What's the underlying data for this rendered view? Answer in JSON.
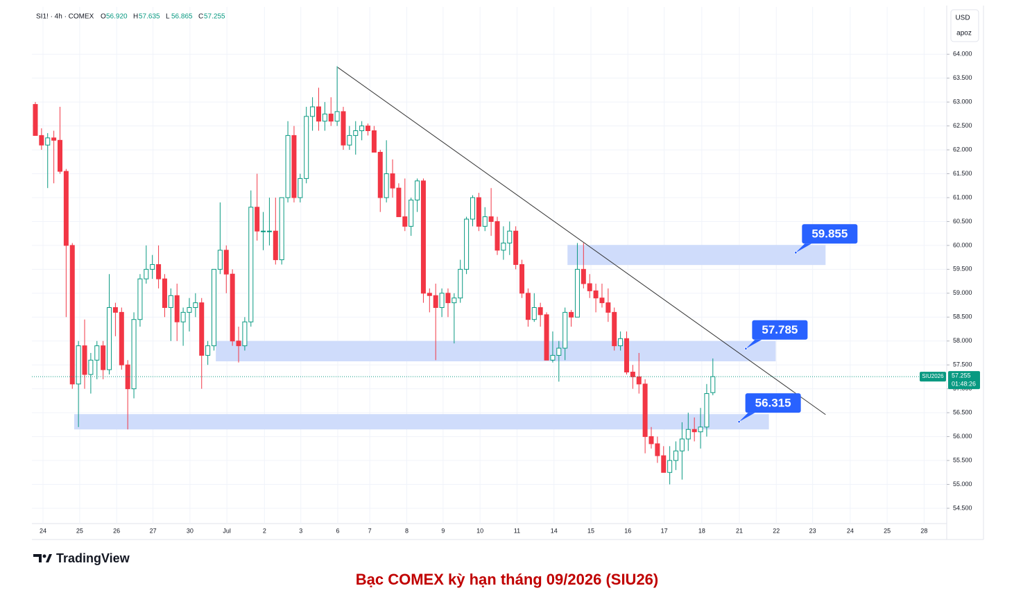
{
  "chart_data": {
    "type": "candlestick",
    "symbol": "SI1! · 4h · COMEX",
    "legend_values": [
      {
        "key": "O",
        "value": 56.92,
        "label": "56.920"
      },
      {
        "key": "H",
        "value": 57.635,
        "label": "57.635"
      },
      {
        "key": "L",
        "value": 56.865,
        "label": "56.865"
      },
      {
        "key": "C",
        "value": 57.255,
        "label": "57.255"
      }
    ],
    "currency": "USD",
    "currency_sub": "apoz",
    "up_color": "#089981",
    "down_color": "#f23645",
    "zone_color": "#cfdcfb",
    "label_color": "#2962ff",
    "trend_color": "#333333",
    "candles": [
      [
        62.95,
        63.0,
        62.3,
        62.3
      ],
      [
        62.3,
        62.45,
        62.0,
        62.1
      ],
      [
        62.1,
        62.35,
        61.2,
        62.25
      ],
      [
        62.25,
        62.4,
        61.3,
        62.2
      ],
      [
        62.2,
        62.9,
        61.5,
        61.55
      ],
      [
        61.55,
        61.6,
        58.5,
        60.0
      ],
      [
        60.0,
        60.05,
        57.0,
        57.1
      ],
      [
        57.1,
        58.0,
        56.2,
        57.9
      ],
      [
        57.9,
        58.45,
        57.0,
        57.3
      ],
      [
        57.3,
        57.75,
        56.9,
        57.6
      ],
      [
        57.6,
        58.0,
        57.2,
        57.9
      ],
      [
        57.9,
        58.0,
        57.2,
        57.4
      ],
      [
        57.4,
        59.4,
        57.3,
        58.7
      ],
      [
        58.7,
        58.8,
        58.1,
        58.6
      ],
      [
        58.6,
        58.7,
        57.4,
        57.5
      ],
      [
        57.5,
        57.6,
        56.15,
        57.0
      ],
      [
        57.0,
        58.6,
        56.8,
        58.45
      ],
      [
        58.45,
        59.4,
        58.3,
        59.3
      ],
      [
        59.3,
        60.0,
        59.2,
        59.5
      ],
      [
        59.5,
        59.8,
        59.3,
        59.6
      ],
      [
        59.6,
        60.0,
        59.1,
        59.3
      ],
      [
        59.3,
        59.4,
        58.5,
        58.7
      ],
      [
        58.7,
        59.1,
        58.0,
        58.95
      ],
      [
        58.95,
        59.2,
        58.0,
        58.4
      ],
      [
        58.4,
        58.7,
        57.9,
        58.6
      ],
      [
        58.6,
        58.9,
        58.2,
        58.7
      ],
      [
        58.7,
        59.0,
        58.5,
        58.8
      ],
      [
        58.8,
        58.9,
        57.0,
        57.7
      ],
      [
        57.7,
        58.0,
        57.5,
        57.9
      ],
      [
        57.9,
        59.5,
        57.8,
        59.5
      ],
      [
        59.5,
        60.9,
        59.4,
        59.9
      ],
      [
        59.9,
        60.0,
        59.0,
        59.4
      ],
      [
        59.4,
        59.5,
        57.9,
        58.0
      ],
      [
        58.0,
        58.3,
        57.55,
        57.9
      ],
      [
        57.9,
        58.5,
        57.8,
        58.4
      ],
      [
        58.4,
        61.15,
        58.3,
        60.8
      ],
      [
        60.8,
        61.5,
        60.1,
        60.3
      ],
      [
        60.3,
        60.7,
        59.9,
        60.3
      ],
      [
        60.3,
        61.0,
        60.0,
        60.3
      ],
      [
        60.3,
        61.0,
        59.6,
        59.7
      ],
      [
        59.7,
        61.0,
        59.6,
        61.0
      ],
      [
        61.0,
        62.6,
        60.9,
        62.3
      ],
      [
        62.3,
        62.5,
        60.9,
        61.0
      ],
      [
        61.0,
        61.5,
        60.9,
        61.4
      ],
      [
        61.4,
        62.9,
        61.3,
        62.7
      ],
      [
        62.7,
        63.1,
        62.4,
        62.9
      ],
      [
        62.9,
        63.3,
        62.4,
        62.6
      ],
      [
        62.6,
        63.0,
        62.4,
        62.75
      ],
      [
        62.75,
        63.1,
        62.5,
        62.6
      ],
      [
        62.6,
        63.75,
        62.5,
        62.8
      ],
      [
        62.8,
        62.9,
        62.0,
        62.1
      ],
      [
        62.1,
        62.5,
        62.0,
        62.3
      ],
      [
        62.3,
        62.6,
        61.9,
        62.4
      ],
      [
        62.4,
        62.6,
        62.2,
        62.5
      ],
      [
        62.5,
        62.55,
        62.3,
        62.4
      ],
      [
        62.4,
        62.5,
        61.95,
        61.95
      ],
      [
        61.95,
        62.0,
        60.7,
        61.0
      ],
      [
        61.0,
        62.2,
        60.9,
        61.5
      ],
      [
        61.5,
        61.8,
        61.0,
        61.2
      ],
      [
        61.2,
        61.3,
        60.6,
        60.6
      ],
      [
        60.6,
        61.4,
        60.3,
        60.4
      ],
      [
        60.4,
        61.0,
        60.2,
        60.95
      ],
      [
        60.95,
        61.4,
        60.7,
        61.35
      ],
      [
        61.35,
        61.4,
        58.8,
        59.0
      ],
      [
        59.0,
        59.1,
        58.6,
        58.95
      ],
      [
        58.95,
        59.2,
        57.6,
        58.7
      ],
      [
        58.7,
        59.1,
        58.5,
        59.0
      ],
      [
        59.0,
        59.1,
        58.5,
        58.8
      ],
      [
        58.8,
        59.0,
        57.95,
        58.9
      ],
      [
        58.9,
        59.7,
        58.8,
        59.5
      ],
      [
        59.5,
        60.6,
        59.4,
        60.55
      ],
      [
        60.55,
        61.05,
        60.4,
        61.0
      ],
      [
        61.0,
        61.1,
        60.3,
        60.4
      ],
      [
        60.4,
        60.8,
        60.3,
        60.6
      ],
      [
        60.6,
        61.2,
        60.2,
        60.5
      ],
      [
        60.5,
        60.6,
        59.8,
        59.9
      ],
      [
        59.9,
        60.4,
        59.7,
        60.05
      ],
      [
        60.05,
        60.5,
        59.8,
        60.3
      ],
      [
        60.3,
        60.4,
        59.5,
        59.6
      ],
      [
        59.6,
        59.7,
        58.9,
        59.0
      ],
      [
        59.0,
        59.1,
        58.3,
        58.45
      ],
      [
        58.45,
        59.0,
        58.4,
        58.7
      ],
      [
        58.7,
        58.8,
        58.3,
        58.55
      ],
      [
        58.55,
        58.6,
        57.6,
        57.6
      ],
      [
        57.6,
        58.2,
        57.55,
        57.7
      ],
      [
        57.7,
        58.0,
        57.15,
        57.85
      ],
      [
        57.85,
        58.7,
        57.6,
        58.6
      ],
      [
        58.6,
        58.65,
        58.3,
        58.5
      ],
      [
        58.5,
        60.05,
        58.5,
        59.5
      ],
      [
        59.5,
        60.05,
        59.1,
        59.2
      ],
      [
        59.2,
        59.4,
        58.9,
        59.05
      ],
      [
        59.05,
        59.2,
        58.6,
        58.9
      ],
      [
        58.9,
        59.2,
        58.7,
        58.8
      ],
      [
        58.8,
        59.1,
        58.4,
        58.6
      ],
      [
        58.6,
        58.7,
        57.8,
        57.9
      ],
      [
        57.9,
        58.2,
        57.8,
        58.05
      ],
      [
        58.05,
        58.2,
        57.3,
        57.35
      ],
      [
        57.35,
        57.5,
        57.0,
        57.25
      ],
      [
        57.25,
        57.75,
        56.9,
        57.1
      ],
      [
        57.1,
        57.2,
        55.65,
        56.0
      ],
      [
        56.0,
        56.2,
        55.75,
        55.85
      ],
      [
        55.85,
        56.0,
        55.45,
        55.6
      ],
      [
        55.6,
        55.8,
        55.25,
        55.25
      ],
      [
        55.25,
        55.8,
        55.0,
        55.5
      ],
      [
        55.5,
        55.9,
        55.3,
        55.7
      ],
      [
        55.7,
        56.3,
        55.1,
        55.95
      ],
      [
        55.95,
        56.5,
        55.7,
        56.15
      ],
      [
        56.15,
        56.4,
        55.9,
        56.1
      ],
      [
        56.1,
        56.6,
        55.75,
        56.2
      ],
      [
        56.2,
        57.1,
        56.0,
        56.9
      ],
      [
        56.92,
        57.635,
        56.865,
        57.255
      ]
    ],
    "xlim": [
      -0.56,
      147.97
    ],
    "xticks": [
      {
        "value": 1.24,
        "label": "24"
      },
      {
        "value": 7.2,
        "label": "25"
      },
      {
        "value": 13.2,
        "label": "26"
      },
      {
        "value": 19.1,
        "label": "27"
      },
      {
        "value": 25.1,
        "label": "30"
      },
      {
        "value": 31.1,
        "label": "Jul"
      },
      {
        "value": 37.2,
        "label": "2"
      },
      {
        "value": 43.1,
        "label": "3"
      },
      {
        "value": 49.1,
        "label": "6"
      },
      {
        "value": 54.3,
        "label": "7"
      },
      {
        "value": 60.3,
        "label": "8"
      },
      {
        "value": 66.2,
        "label": "9"
      },
      {
        "value": 72.2,
        "label": "10"
      },
      {
        "value": 78.2,
        "label": "11"
      },
      {
        "value": 84.2,
        "label": "14"
      },
      {
        "value": 90.2,
        "label": "15"
      },
      {
        "value": 96.2,
        "label": "16"
      },
      {
        "value": 102.1,
        "label": "17"
      },
      {
        "value": 108.2,
        "label": "18"
      },
      {
        "value": 114.3,
        "label": "21"
      },
      {
        "value": 120.3,
        "label": "22"
      },
      {
        "value": 126.2,
        "label": "23"
      },
      {
        "value": 132.3,
        "label": "24"
      },
      {
        "value": 138.3,
        "label": "25"
      },
      {
        "value": 144.3,
        "label": "28"
      }
    ],
    "ylim": [
      54.18,
      64.99
    ],
    "yticks": [
      {
        "value": 54.5,
        "label": "54.500"
      },
      {
        "value": 55,
        "label": "55.000"
      },
      {
        "value": 55.5,
        "label": "55.500"
      },
      {
        "value": 56,
        "label": "56.000"
      },
      {
        "value": 56.5,
        "label": "56.500"
      },
      {
        "value": 57,
        "label": "57.000"
      },
      {
        "value": 57.5,
        "label": "57.500"
      },
      {
        "value": 58,
        "label": "58.000"
      },
      {
        "value": 58.5,
        "label": "58.500"
      },
      {
        "value": 59,
        "label": "59.000"
      },
      {
        "value": 59.5,
        "label": "59.500"
      },
      {
        "value": 60,
        "label": "60.000"
      },
      {
        "value": 60.5,
        "label": "60.500"
      },
      {
        "value": 61,
        "label": "61.000"
      },
      {
        "value": 61.5,
        "label": "61.500"
      },
      {
        "value": 62,
        "label": "62.000"
      },
      {
        "value": 62.5,
        "label": "62.500"
      },
      {
        "value": 63,
        "label": "63.000"
      },
      {
        "value": 63.5,
        "label": "63.500"
      },
      {
        "value": 64,
        "label": "64.000"
      }
    ],
    "grid": true,
    "trendline": {
      "x": [
        49.1,
        128.3
      ],
      "y": [
        63.725,
        56.46
      ]
    },
    "zones": [
      {
        "x_range": [
          86.4,
          128.3
        ],
        "price_range": [
          59.59,
          60.01
        ],
        "label": 59.855
      },
      {
        "x_range": [
          29.3,
          120.2
        ],
        "price_range": [
          57.575,
          58.0
        ],
        "label": 57.785
      },
      {
        "x_range": [
          6.3,
          119.1
        ],
        "price_range": [
          56.15,
          56.47
        ],
        "label": 56.315
      }
    ],
    "last_price_symbol": "SIU2026",
    "countdown": "01:48:26",
    "brand": "TradingView",
    "caption": "Bạc COMEX kỳ hạn tháng 09/2026 (SIU26)"
  }
}
